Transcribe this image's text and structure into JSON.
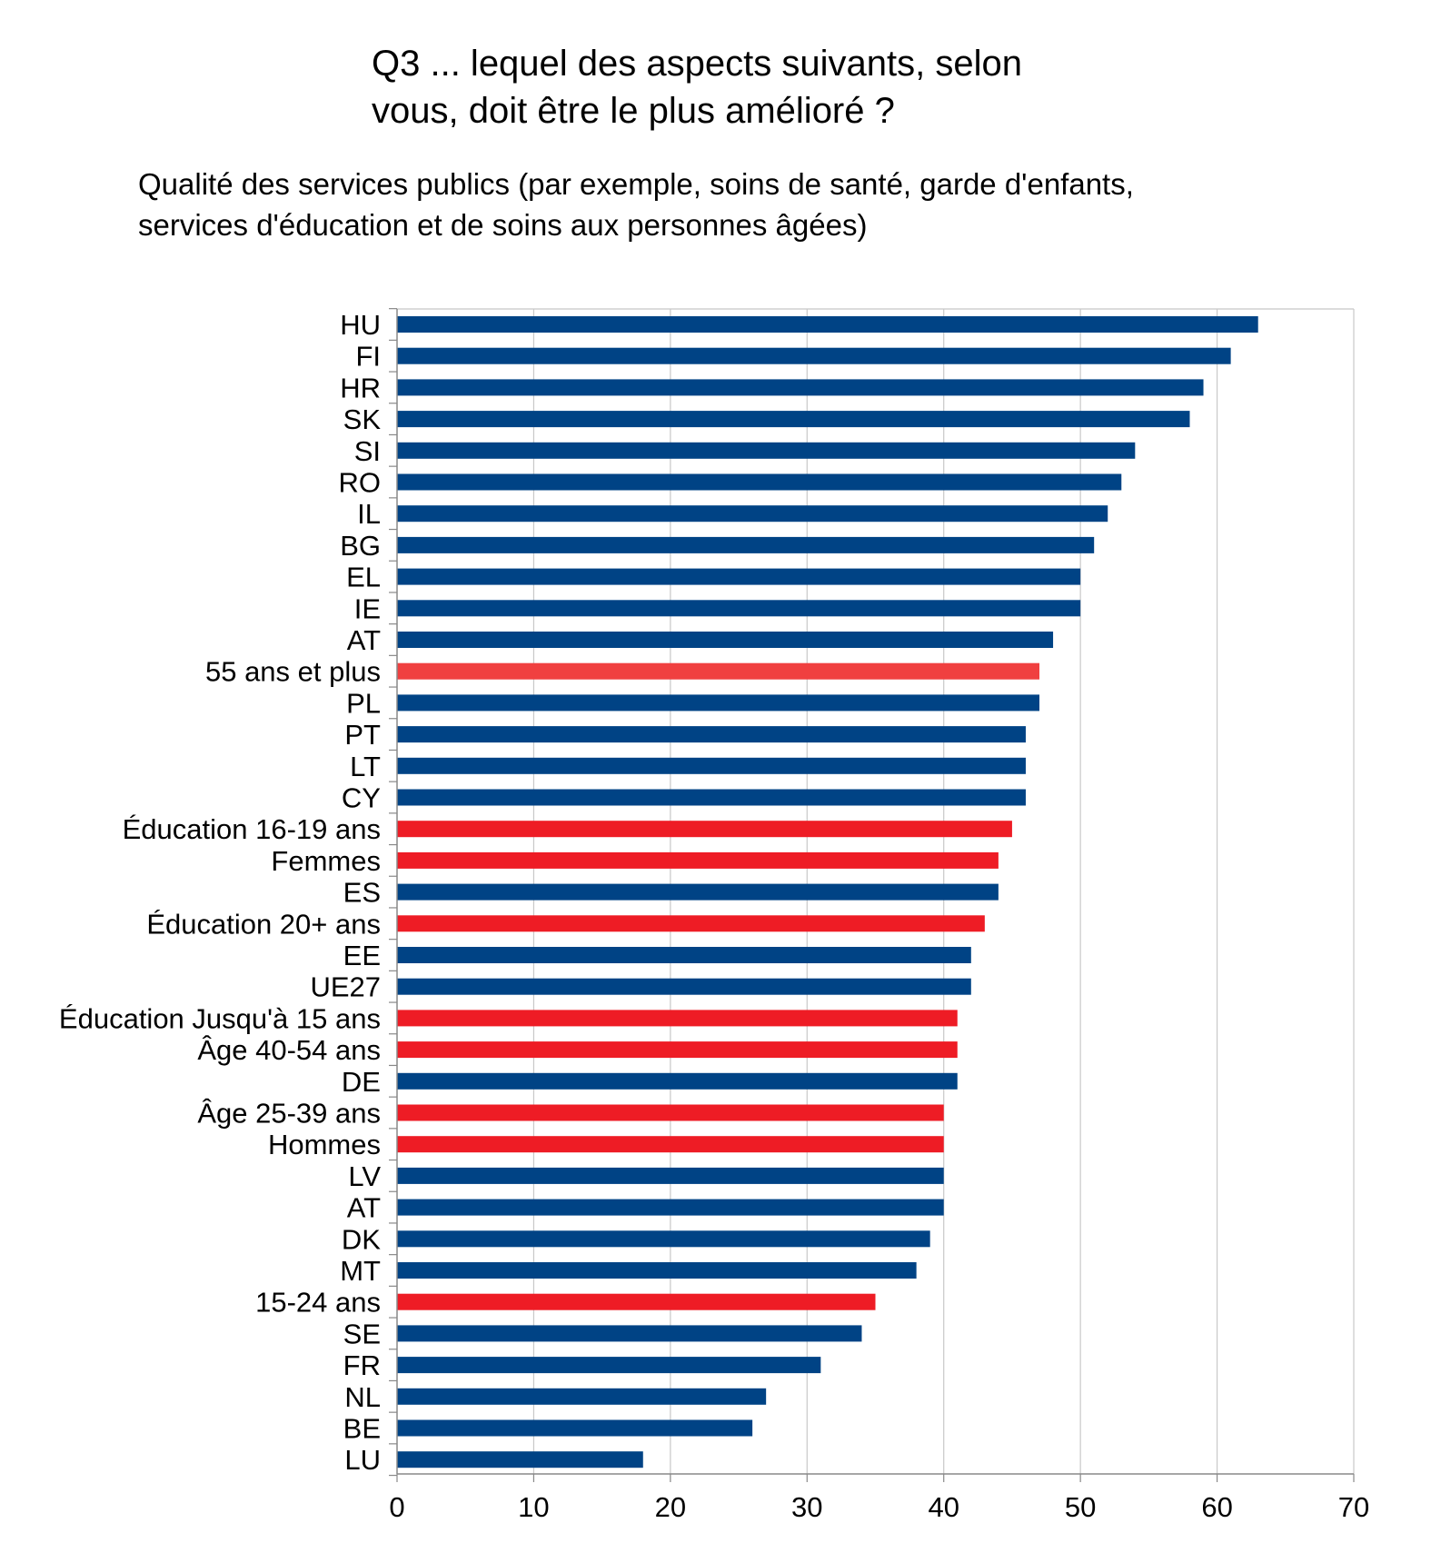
{
  "title_lines": [
    "Q3 ... lequel des aspects suivants, selon",
    "vous, doit être le plus amélioré ?"
  ],
  "subtitle_lines": [
    "Qualité des services publics (par exemple, soins de santé, garde d'enfants,",
    "services d'éducation et de soins aux personnes âgées)"
  ],
  "colors": {
    "country": "#004385",
    "group": "#ee1c25",
    "highlight": "#f04040",
    "grid": "#c8c8c8",
    "axis": "#888888"
  },
  "chart_data": {
    "type": "bar",
    "orientation": "horizontal",
    "title": "Q3 ... lequel des aspects suivants, selon vous, doit être le plus amélioré ?",
    "subtitle": "Qualité des services publics (par exemple, soins de santé, garde d'enfants, services d'éducation et de soins aux personnes âgées)",
    "xlim": [
      0,
      70
    ],
    "xticks": [
      0,
      10,
      20,
      30,
      40,
      50,
      60,
      70
    ],
    "grid": true,
    "legend": "none",
    "categories": [
      "HU",
      "FI",
      "HR",
      "SK",
      "SI",
      "RO",
      "IL",
      "BG",
      "EL",
      "IE",
      "AT",
      "55 ans et plus",
      "PL",
      "PT",
      "LT",
      "CY",
      "Éducation 16-19 ans",
      "Femmes",
      "ES",
      "Éducation 20+ ans",
      "EE",
      "UE27",
      "Éducation Jusqu'à 15 ans",
      "Âge 40-54 ans",
      "DE",
      "Âge 25-39 ans",
      "Hommes",
      "LV",
      "AT",
      "DK",
      "MT",
      "15-24 ans",
      "SE",
      "FR",
      "NL",
      "BE",
      "LU"
    ],
    "values": [
      63,
      61,
      59,
      58,
      54,
      53,
      52,
      51,
      50,
      50,
      48,
      47,
      47,
      46,
      46,
      46,
      45,
      44,
      44,
      43,
      42,
      42,
      41,
      41,
      41,
      40,
      40,
      40,
      40,
      39,
      38,
      35,
      34,
      31,
      27,
      26,
      18
    ],
    "kinds": [
      "country",
      "country",
      "country",
      "country",
      "country",
      "country",
      "country",
      "country",
      "country",
      "country",
      "country",
      "highlight",
      "country",
      "country",
      "country",
      "country",
      "group",
      "group",
      "country",
      "group",
      "country",
      "country",
      "group",
      "group",
      "country",
      "group",
      "group",
      "country",
      "country",
      "country",
      "country",
      "group",
      "country",
      "country",
      "country",
      "country",
      "country"
    ]
  }
}
